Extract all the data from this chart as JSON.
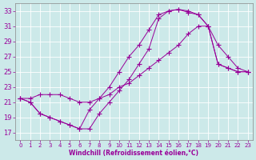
{
  "xlabel": "Windchill (Refroidissement éolien,°C)",
  "xlim": [
    -0.5,
    23.5
  ],
  "ylim": [
    16,
    34
  ],
  "yticks": [
    17,
    19,
    21,
    23,
    25,
    27,
    29,
    31,
    33
  ],
  "xticks": [
    0,
    1,
    2,
    3,
    4,
    5,
    6,
    7,
    8,
    9,
    10,
    11,
    12,
    13,
    14,
    15,
    16,
    17,
    18,
    19,
    20,
    21,
    22,
    23
  ],
  "bg_color": "#cce9e9",
  "line_color": "#990099",
  "line1_x": [
    0,
    1,
    2,
    3,
    4,
    5,
    6,
    7,
    8,
    9,
    10,
    11,
    12,
    13,
    14,
    15,
    16,
    17,
    18,
    19,
    20,
    21,
    22,
    23
  ],
  "line1_y": [
    21.5,
    21.0,
    19.5,
    19.0,
    18.5,
    18.0,
    17.5,
    17.5,
    19.5,
    21.0,
    22.5,
    24.0,
    26.0,
    28.0,
    32.0,
    33.0,
    33.2,
    33.0,
    32.5,
    31.0,
    26.0,
    25.5,
    25.0,
    25.0
  ],
  "line2_x": [
    0,
    1,
    2,
    3,
    4,
    5,
    6,
    7,
    8,
    9,
    10,
    11,
    12,
    13,
    14,
    15,
    16,
    17,
    18,
    19,
    20,
    21,
    22,
    23
  ],
  "line2_y": [
    21.5,
    21.0,
    19.5,
    19.0,
    18.5,
    18.0,
    17.5,
    20.0,
    21.5,
    23.0,
    25.0,
    27.0,
    28.5,
    30.5,
    32.5,
    33.0,
    33.2,
    32.8,
    32.5,
    31.0,
    26.0,
    25.5,
    25.0,
    25.0
  ],
  "line3_x": [
    0,
    1,
    2,
    3,
    4,
    5,
    6,
    7,
    8,
    9,
    10,
    11,
    12,
    13,
    14,
    15,
    16,
    17,
    18,
    19,
    20,
    21,
    22,
    23
  ],
  "line3_y": [
    21.5,
    21.5,
    22.0,
    22.0,
    22.0,
    21.5,
    21.0,
    21.0,
    21.5,
    22.0,
    23.0,
    23.5,
    24.5,
    25.5,
    26.5,
    27.5,
    28.5,
    30.0,
    31.0,
    31.0,
    28.5,
    27.0,
    25.5,
    25.0
  ]
}
